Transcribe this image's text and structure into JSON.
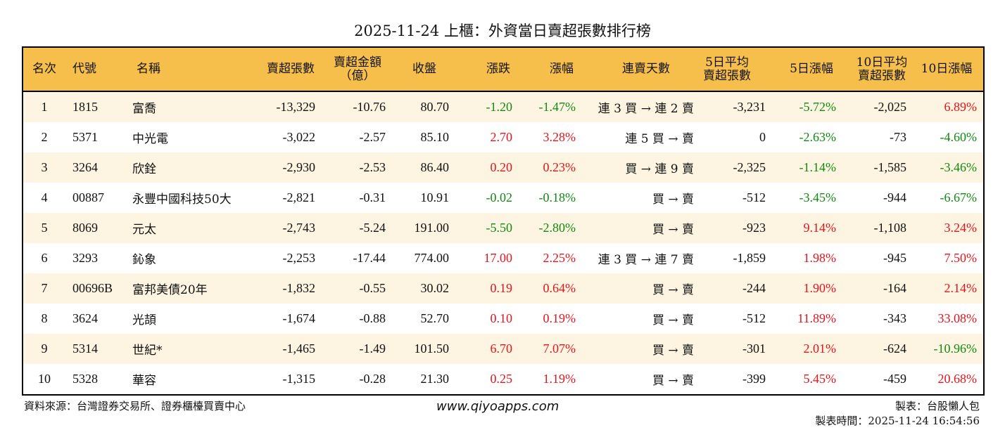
{
  "title": "2025-11-24 上櫃：外資當日賣超張數排行榜",
  "headers": [
    "名次",
    "代號",
    "名稱",
    "賣超張數",
    "賣超金額\n（億）",
    "收盤",
    "漲跌",
    "漲幅",
    "連賣天數",
    "5日平均\n賣超張數",
    "5日漲幅",
    "10日平均\n賣超張數",
    "10日漲幅"
  ],
  "rows": [
    [
      "1",
      "1815",
      "富喬",
      "-13,329",
      "-10.76",
      "80.70",
      "-1.20",
      "-1.47%",
      "連 3 買 → 連 2 賣",
      "-3,231",
      "-5.72%",
      "-2,025",
      "6.89%"
    ],
    [
      "2",
      "5371",
      "中光電",
      "-3,022",
      "-2.57",
      "85.10",
      "2.70",
      "3.28%",
      "連 5 買 → 賣",
      "0",
      "-2.63%",
      "-73",
      "-4.60%"
    ],
    [
      "3",
      "3264",
      "欣銓",
      "-2,930",
      "-2.53",
      "86.40",
      "0.20",
      "0.23%",
      "買 → 連 9 賣",
      "-2,325",
      "-1.14%",
      "-1,585",
      "-3.46%"
    ],
    [
      "4",
      "00887",
      "永豐中國科技50大",
      "-2,821",
      "-0.31",
      "10.91",
      "-0.02",
      "-0.18%",
      "買 → 賣",
      "-512",
      "-3.45%",
      "-944",
      "-6.67%"
    ],
    [
      "5",
      "8069",
      "元太",
      "-2,743",
      "-5.24",
      "191.00",
      "-5.50",
      "-2.80%",
      "買 → 賣",
      "-923",
      "9.14%",
      "-1,108",
      "3.24%"
    ],
    [
      "6",
      "3293",
      "鈊象",
      "-2,253",
      "-17.44",
      "774.00",
      "17.00",
      "2.25%",
      "連 3 買 → 連 7 賣",
      "-1,859",
      "1.98%",
      "-945",
      "7.50%"
    ],
    [
      "7",
      "00696B",
      "富邦美債20年",
      "-1,832",
      "-0.55",
      "30.02",
      "0.19",
      "0.64%",
      "買 → 賣",
      "-244",
      "1.90%",
      "-164",
      "2.14%"
    ],
    [
      "8",
      "3624",
      "光頡",
      "-1,674",
      "-0.88",
      "52.70",
      "0.10",
      "0.19%",
      "買 → 賣",
      "-512",
      "11.89%",
      "-343",
      "33.08%"
    ],
    [
      "9",
      "5314",
      "世紀*",
      "-1,465",
      "-1.49",
      "101.50",
      "6.70",
      "7.07%",
      "買 → 賣",
      "-301",
      "2.01%",
      "-624",
      "-10.96%"
    ],
    [
      "10",
      "5328",
      "華容",
      "-1,315",
      "-0.28",
      "21.30",
      "0.25",
      "1.19%",
      "買 → 賣",
      "-399",
      "5.45%",
      "-459",
      "20.68%"
    ]
  ],
  "footer": {
    "source": "資料來源：台灣證券交易所、證券櫃檯買賣中心",
    "site": "www.qiyoapps.com",
    "maker": "製表：台股懶人包",
    "time": "製表時間：2025-11-24 16:54:56"
  },
  "colors": {
    "header": "#F6BF4C",
    "row_alt": "#FDF5E1",
    "up": "#E8131B",
    "down": "#108A10"
  }
}
